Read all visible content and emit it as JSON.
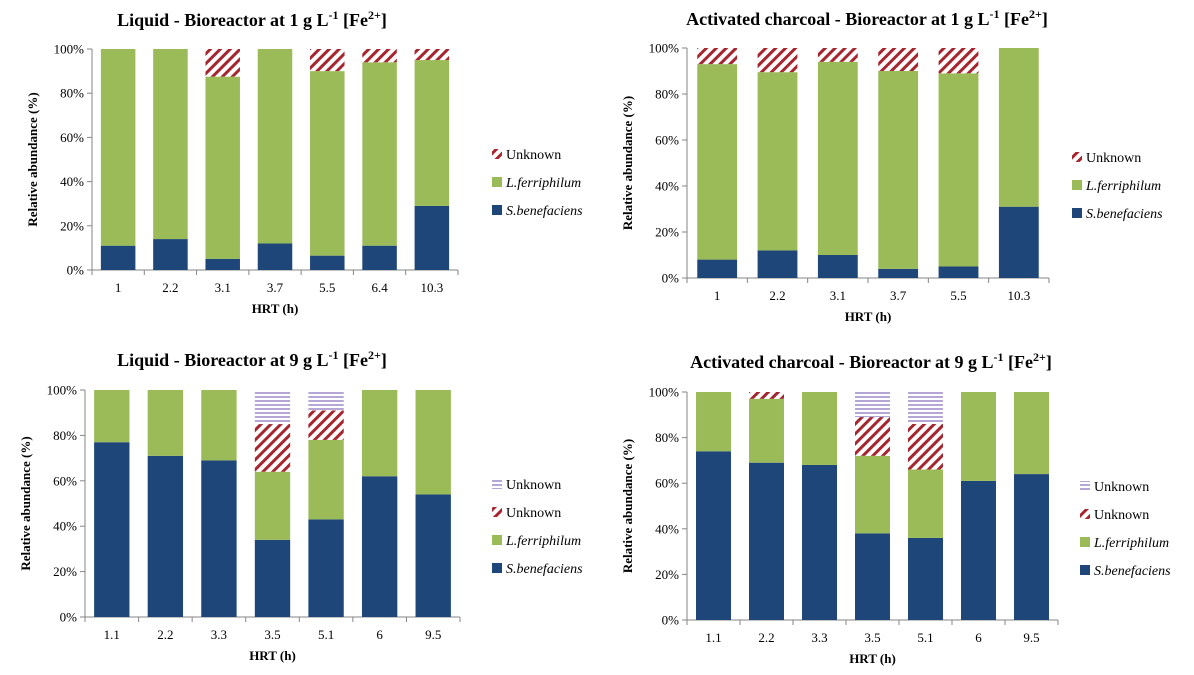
{
  "colors": {
    "S.benefaciens": "#1f4679",
    "L.ferriphilum": "#9bbb59",
    "Unknown_hatch": "#a5262f",
    "Unknown_lines": "#b4a7d6"
  },
  "chart_data": [
    {
      "type": "bar",
      "title": {
        "pre": "Liquid - Bioreactor at 1 g L",
        "sup1": "-1",
        "mid": " [Fe",
        "sup2": "2+",
        "post": "]"
      },
      "xlabel": "HRT (h)",
      "ylabel": "Relative abundance (%)",
      "ylim": [
        0,
        100
      ],
      "yticks": [
        "0%",
        "20%",
        "40%",
        "60%",
        "80%",
        "100%"
      ],
      "categories": [
        "1",
        "2.2",
        "3.1",
        "3.7",
        "5.5",
        "6.4",
        "10.3"
      ],
      "series": [
        {
          "name": "S.benefaciens",
          "style": "solid-blue",
          "values": [
            11,
            14,
            5,
            12,
            6.5,
            11,
            29
          ]
        },
        {
          "name": "L.ferriphilum",
          "style": "solid-green",
          "values": [
            89,
            86,
            82.5,
            88,
            83.5,
            83,
            66
          ]
        },
        {
          "name": "Unknown",
          "style": "hatch-red",
          "values": [
            0,
            0,
            12.5,
            0,
            10,
            6,
            5
          ]
        }
      ],
      "legend": [
        "Unknown",
        "L.ferriphilum",
        "S.benefaciens"
      ]
    },
    {
      "type": "bar",
      "title": {
        "pre": "Activated charcoal - Bioreactor at 1 g L",
        "sup1": "-1",
        "mid": " [Fe",
        "sup2": "2+",
        "post": "]"
      },
      "xlabel": "HRT (h)",
      "ylabel": "Relative abundance (%)",
      "ylim": [
        0,
        100
      ],
      "yticks": [
        "0%",
        "20%",
        "40%",
        "60%",
        "80%",
        "100%"
      ],
      "categories": [
        "1",
        "2.2",
        "3.1",
        "3.7",
        "5.5",
        "10.3"
      ],
      "series": [
        {
          "name": "S.benefaciens",
          "style": "solid-blue",
          "values": [
            8,
            12,
            10,
            4,
            5,
            31
          ]
        },
        {
          "name": "L.ferriphilum",
          "style": "solid-green",
          "values": [
            85,
            77.5,
            84,
            86,
            84,
            69
          ]
        },
        {
          "name": "Unknown",
          "style": "hatch-red",
          "values": [
            7,
            10.5,
            6,
            10,
            11,
            0
          ]
        }
      ],
      "legend": [
        "Unknown",
        "L.ferriphilum",
        "S.benefaciens"
      ]
    },
    {
      "type": "bar",
      "title": {
        "pre": "Liquid - Bioreactor at 9 g L",
        "sup1": "-1",
        "mid": " [Fe",
        "sup2": "2+",
        "post": "]"
      },
      "xlabel": "HRT (h)",
      "ylabel": "Relative abundance (%)",
      "ylim": [
        0,
        100
      ],
      "yticks": [
        "0%",
        "20%",
        "40%",
        "60%",
        "80%",
        "100%"
      ],
      "categories": [
        "1.1",
        "2.2",
        "3.3",
        "3.5",
        "5.1",
        "6",
        "9.5"
      ],
      "series": [
        {
          "name": "S.benefaciens",
          "style": "solid-blue",
          "values": [
            77,
            71,
            69,
            34,
            43,
            62,
            54
          ]
        },
        {
          "name": "L.ferriphilum",
          "style": "solid-green",
          "values": [
            23,
            29,
            31,
            30,
            35,
            38,
            46
          ]
        },
        {
          "name": "Unknown",
          "style": "hatch-red",
          "values": [
            0,
            0,
            0,
            21,
            13,
            0,
            0
          ]
        },
        {
          "name": "Unknown",
          "style": "lines-lavender",
          "values": [
            0,
            0,
            0,
            15,
            9,
            0,
            0
          ]
        }
      ],
      "legend": [
        "Unknown",
        "Unknown",
        "L.ferriphilum",
        "S.benefaciens"
      ]
    },
    {
      "type": "bar",
      "title": {
        "pre": "Activated charcoal - Bioreactor at 9 g L",
        "sup1": "-1",
        "mid": " [Fe",
        "sup2": "2+",
        "post": "]"
      },
      "xlabel": "HRT (h)",
      "ylabel": "Relative abundance (%)",
      "ylim": [
        0,
        100
      ],
      "yticks": [
        "0%",
        "20%",
        "40%",
        "60%",
        "80%",
        "100%"
      ],
      "categories": [
        "1.1",
        "2.2",
        "3.3",
        "3.5",
        "5.1",
        "6",
        "9.5"
      ],
      "series": [
        {
          "name": "S.benefaciens",
          "style": "solid-blue",
          "values": [
            74,
            69,
            68,
            38,
            36,
            61,
            64
          ]
        },
        {
          "name": "L.ferriphilum",
          "style": "solid-green",
          "values": [
            26,
            28,
            32,
            34,
            30,
            39,
            36
          ]
        },
        {
          "name": "Unknown",
          "style": "hatch-red",
          "values": [
            0,
            3,
            0,
            17,
            20,
            0,
            0
          ]
        },
        {
          "name": "Unknown",
          "style": "lines-lavender",
          "values": [
            0,
            0,
            0,
            11,
            14,
            0,
            0
          ]
        }
      ],
      "legend": [
        "Unknown",
        "Unknown",
        "L.ferriphilum",
        "S.benefaciens"
      ]
    }
  ]
}
